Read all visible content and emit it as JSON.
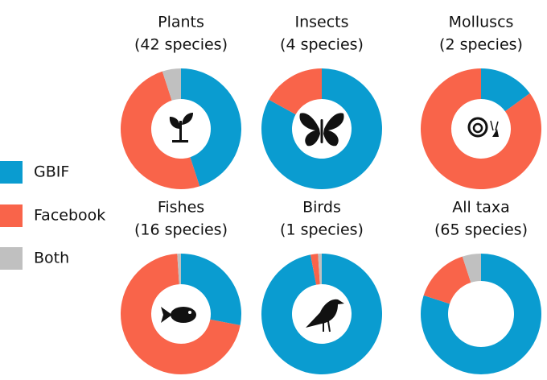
{
  "chart_data": [
    {
      "type": "pie",
      "title": "Plants",
      "subtitle": "(42 species)",
      "categories": [
        "GBIF",
        "Facebook",
        "Both"
      ],
      "values": [
        45,
        50,
        5
      ],
      "colors": [
        "#0a9cd0",
        "#f9644a",
        "#c0c0c0"
      ]
    },
    {
      "type": "pie",
      "title": "Insects",
      "subtitle": "(4 species)",
      "categories": [
        "GBIF",
        "Facebook"
      ],
      "values": [
        83,
        17
      ],
      "colors": [
        "#0a9cd0",
        "#f9644a"
      ]
    },
    {
      "type": "pie",
      "title": "Molluscs",
      "subtitle": "(2 species)",
      "categories": [
        "GBIF",
        "Facebook"
      ],
      "values": [
        15,
        85
      ],
      "colors": [
        "#0a9cd0",
        "#f9644a"
      ]
    },
    {
      "type": "pie",
      "title": "Fishes",
      "subtitle": "(16 species)",
      "categories": [
        "GBIF",
        "Facebook",
        "Both"
      ],
      "values": [
        28,
        71,
        1
      ],
      "colors": [
        "#0a9cd0",
        "#f9644a",
        "#c0c0c0"
      ]
    },
    {
      "type": "pie",
      "title": "Birds",
      "subtitle": "(1 species)",
      "categories": [
        "GBIF",
        "Facebook",
        "Both"
      ],
      "values": [
        97,
        2,
        1
      ],
      "colors": [
        "#0a9cd0",
        "#f9644a",
        "#c0c0c0"
      ]
    },
    {
      "type": "pie",
      "title": "All taxa",
      "subtitle": "(65 species)",
      "categories": [
        "GBIF",
        "Facebook",
        "Both"
      ],
      "values": [
        80,
        15,
        5
      ],
      "colors": [
        "#0a9cd0",
        "#f9644a",
        "#c0c0c0"
      ]
    }
  ]
}
